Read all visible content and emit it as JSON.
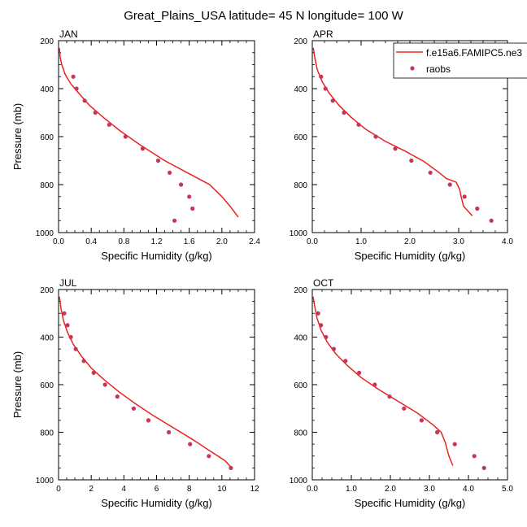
{
  "page": {
    "title": "Great_Plains_USA  latitude= 45 N longitude= 100 W"
  },
  "colors": {
    "model": "#e8231e",
    "obs": "#c4365a",
    "axis": "#000000"
  },
  "legend": {
    "placement": "top-right of APR panel, clipped by figure edge",
    "model_label": "f.e15a6.FAMIPC5.ne3",
    "obs_label": "raobs"
  },
  "chart_data": [
    {
      "type": "line",
      "panel_label": "JAN",
      "xlabel": "Specific Humidity (g/kg)",
      "ylabel": "Pressure (mb)",
      "xlim": [
        0,
        2.4
      ],
      "ylim": [
        200,
        1000
      ],
      "y_inverted": true,
      "xticks": [
        "0.0",
        "0.4",
        "0.8",
        "1.2",
        "1.6",
        "2.0",
        "2.4"
      ],
      "yticks": [
        "200",
        "400",
        "600",
        "800",
        "1000"
      ],
      "series": [
        {
          "kind": "line",
          "points": [
            [
              0.01,
              230
            ],
            [
              0.02,
              270
            ],
            [
              0.04,
              300
            ],
            [
              0.08,
              340
            ],
            [
              0.15,
              380
            ],
            [
              0.25,
              420
            ],
            [
              0.38,
              470
            ],
            [
              0.55,
              520
            ],
            [
              0.75,
              575
            ],
            [
              1.0,
              635
            ],
            [
              1.3,
              700
            ],
            [
              1.6,
              755
            ],
            [
              1.85,
              800
            ],
            [
              2.0,
              850
            ],
            [
              2.1,
              890
            ],
            [
              2.2,
              935
            ]
          ]
        },
        {
          "kind": "scatter",
          "points": [
            [
              0.18,
              350
            ],
            [
              0.22,
              400
            ],
            [
              0.32,
              450
            ],
            [
              0.45,
              500
            ],
            [
              0.62,
              550
            ],
            [
              0.82,
              600
            ],
            [
              1.03,
              650
            ],
            [
              1.22,
              700
            ],
            [
              1.36,
              750
            ],
            [
              1.5,
              800
            ],
            [
              1.6,
              850
            ],
            [
              1.64,
              900
            ],
            [
              1.42,
              950
            ]
          ]
        }
      ]
    },
    {
      "type": "line",
      "panel_label": "APR",
      "xlabel": "Specific Humidity (g/kg)",
      "ylabel": "",
      "xlim": [
        0,
        4.0
      ],
      "ylim": [
        200,
        1000
      ],
      "y_inverted": true,
      "xticks": [
        "0.0",
        "1.0",
        "2.0",
        "3.0",
        "4.0"
      ],
      "yticks": [
        "200",
        "400",
        "600",
        "800",
        "1000"
      ],
      "series": [
        {
          "kind": "line",
          "points": [
            [
              0.02,
              230
            ],
            [
              0.05,
              270
            ],
            [
              0.1,
              320
            ],
            [
              0.2,
              370
            ],
            [
              0.35,
              420
            ],
            [
              0.55,
              470
            ],
            [
              0.8,
              520
            ],
            [
              1.1,
              570
            ],
            [
              1.5,
              620
            ],
            [
              1.9,
              660
            ],
            [
              2.3,
              705
            ],
            [
              2.6,
              750
            ],
            [
              2.75,
              775
            ],
            [
              2.95,
              790
            ],
            [
              3.02,
              820
            ],
            [
              3.05,
              850
            ],
            [
              3.1,
              890
            ],
            [
              3.28,
              930
            ]
          ]
        },
        {
          "kind": "scatter",
          "points": [
            [
              0.18,
              350
            ],
            [
              0.27,
              400
            ],
            [
              0.42,
              450
            ],
            [
              0.65,
              500
            ],
            [
              0.95,
              550
            ],
            [
              1.3,
              600
            ],
            [
              1.7,
              650
            ],
            [
              2.03,
              700
            ],
            [
              2.42,
              750
            ],
            [
              2.82,
              800
            ],
            [
              3.12,
              850
            ],
            [
              3.38,
              900
            ],
            [
              3.67,
              950
            ]
          ]
        }
      ]
    },
    {
      "type": "line",
      "panel_label": "JUL",
      "xlabel": "Specific Humidity (g/kg)",
      "ylabel": "Pressure (mb)",
      "xlim": [
        0,
        12
      ],
      "ylim": [
        200,
        1000
      ],
      "y_inverted": true,
      "xticks": [
        "0",
        "2",
        "4",
        "6",
        "8",
        "10",
        "12"
      ],
      "yticks": [
        "200",
        "400",
        "600",
        "800",
        "1000"
      ],
      "series": [
        {
          "kind": "line",
          "points": [
            [
              0.05,
              230
            ],
            [
              0.15,
              280
            ],
            [
              0.3,
              330
            ],
            [
              0.55,
              380
            ],
            [
              0.9,
              430
            ],
            [
              1.4,
              480
            ],
            [
              2.0,
              530
            ],
            [
              2.8,
              580
            ],
            [
              3.7,
              630
            ],
            [
              4.7,
              680
            ],
            [
              5.8,
              730
            ],
            [
              7.0,
              780
            ],
            [
              8.2,
              830
            ],
            [
              9.3,
              880
            ],
            [
              10.2,
              920
            ],
            [
              10.6,
              950
            ]
          ]
        },
        {
          "kind": "scatter",
          "points": [
            [
              0.35,
              300
            ],
            [
              0.55,
              350
            ],
            [
              0.75,
              400
            ],
            [
              1.05,
              450
            ],
            [
              1.55,
              500
            ],
            [
              2.15,
              550
            ],
            [
              2.85,
              600
            ],
            [
              3.6,
              650
            ],
            [
              4.6,
              700
            ],
            [
              5.5,
              750
            ],
            [
              6.75,
              800
            ],
            [
              8.05,
              850
            ],
            [
              9.2,
              900
            ],
            [
              10.55,
              950
            ]
          ]
        }
      ]
    },
    {
      "type": "line",
      "panel_label": "OCT",
      "xlabel": "Specific Humidity (g/kg)",
      "ylabel": "",
      "xlim": [
        0,
        5.0
      ],
      "ylim": [
        200,
        1000
      ],
      "y_inverted": true,
      "xticks": [
        "0.0",
        "1.0",
        "2.0",
        "3.0",
        "4.0",
        "5.0"
      ],
      "yticks": [
        "200",
        "400",
        "600",
        "800",
        "1000"
      ],
      "series": [
        {
          "kind": "line",
          "points": [
            [
              0.02,
              230
            ],
            [
              0.06,
              270
            ],
            [
              0.12,
              320
            ],
            [
              0.22,
              370
            ],
            [
              0.38,
              420
            ],
            [
              0.6,
              470
            ],
            [
              0.9,
              520
            ],
            [
              1.25,
              570
            ],
            [
              1.7,
              620
            ],
            [
              2.2,
              670
            ],
            [
              2.7,
              720
            ],
            [
              3.1,
              770
            ],
            [
              3.3,
              800
            ],
            [
              3.4,
              840
            ],
            [
              3.5,
              900
            ],
            [
              3.6,
              940
            ]
          ]
        },
        {
          "kind": "scatter",
          "points": [
            [
              0.15,
              300
            ],
            [
              0.22,
              350
            ],
            [
              0.35,
              400
            ],
            [
              0.55,
              450
            ],
            [
              0.85,
              500
            ],
            [
              1.2,
              550
            ],
            [
              1.6,
              600
            ],
            [
              1.98,
              650
            ],
            [
              2.35,
              700
            ],
            [
              2.8,
              750
            ],
            [
              3.2,
              800
            ],
            [
              3.65,
              850
            ],
            [
              4.15,
              900
            ],
            [
              4.4,
              950
            ]
          ]
        }
      ]
    }
  ]
}
